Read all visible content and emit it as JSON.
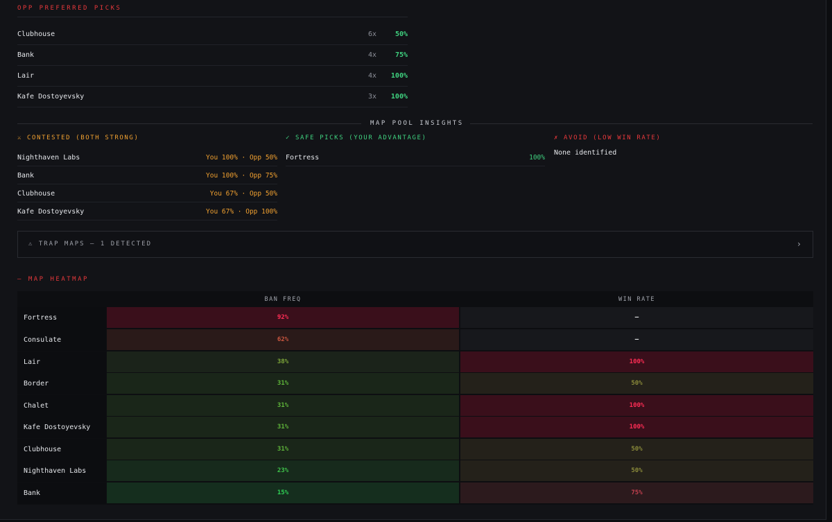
{
  "opp_picks": {
    "title": "OPP PREFERRED PICKS",
    "rows": [
      {
        "name": "Clubhouse",
        "count": "6x",
        "pct": "50%"
      },
      {
        "name": "Bank",
        "count": "4x",
        "pct": "75%"
      },
      {
        "name": "Lair",
        "count": "4x",
        "pct": "100%"
      },
      {
        "name": "Kafe Dostoyevsky",
        "count": "3x",
        "pct": "100%"
      }
    ]
  },
  "insights": {
    "title": "MAP POOL INSIGHTS",
    "contested": {
      "title": "⚔ CONTESTED (BOTH STRONG)",
      "rows": [
        {
          "name": "Nighthaven Labs",
          "value": "You 100% · Opp 50%"
        },
        {
          "name": "Bank",
          "value": "You 100% · Opp 75%"
        },
        {
          "name": "Clubhouse",
          "value": "You 67% · Opp 50%"
        },
        {
          "name": "Kafe Dostoyevsky",
          "value": "You 67% · Opp 100%"
        }
      ]
    },
    "safe": {
      "title": "✓ SAFE PICKS (YOUR ADVANTAGE)",
      "rows": [
        {
          "name": "Fortress",
          "value": "100%"
        }
      ]
    },
    "avoid": {
      "title": "✗ AVOID (LOW WIN RATE)",
      "empty_text": "None identified"
    }
  },
  "trap": {
    "label": "⚠ TRAP MAPS — 1 DETECTED",
    "chevron": "›"
  },
  "heatmap": {
    "title": "— MAP HEATMAP",
    "col_ban": "BAN FREQ",
    "col_win": "WIN RATE",
    "colors": {
      "ban_high": "#3a0f1b",
      "ban_mid": "#2b1a17",
      "green_dark": "#1a2419",
      "green_mid": "#1b2a1b",
      "green_bright": "#163020",
      "neutral": "#17181c",
      "win_high": "#3a0f1b",
      "win_mid": "#26221a",
      "win_75": "#2e1a1e"
    },
    "rows": [
      {
        "map": "Fortress",
        "ban": "92%",
        "win": "–",
        "ban_bg": "#3a0f1b",
        "ban_fg": "#ff2d55",
        "win_bg": "#17181c",
        "win_fg": "#e8e8ea"
      },
      {
        "map": "Consulate",
        "ban": "62%",
        "win": "–",
        "ban_bg": "#2a1a19",
        "ban_fg": "#c8553f",
        "win_bg": "#17181c",
        "win_fg": "#e8e8ea"
      },
      {
        "map": "Lair",
        "ban": "38%",
        "win": "100%",
        "ban_bg": "#1b231a",
        "ban_fg": "#7fa83a",
        "win_bg": "#3a0f1b",
        "win_fg": "#ff2d55"
      },
      {
        "map": "Border",
        "ban": "31%",
        "win": "50%",
        "ban_bg": "#1a2619",
        "ban_fg": "#5fb63a",
        "win_bg": "#24211a",
        "win_fg": "#8a8a3a"
      },
      {
        "map": "Chalet",
        "ban": "31%",
        "win": "100%",
        "ban_bg": "#1a2619",
        "ban_fg": "#5fb63a",
        "win_bg": "#3a0f1b",
        "win_fg": "#ff2d55"
      },
      {
        "map": "Kafe Dostoyevsky",
        "ban": "31%",
        "win": "100%",
        "ban_bg": "#1a2619",
        "ban_fg": "#5fb63a",
        "win_bg": "#3a0f1b",
        "win_fg": "#ff2d55"
      },
      {
        "map": "Clubhouse",
        "ban": "31%",
        "win": "50%",
        "ban_bg": "#1a2619",
        "ban_fg": "#5fb63a",
        "win_bg": "#24211a",
        "win_fg": "#8a8a3a"
      },
      {
        "map": "Nighthaven Labs",
        "ban": "23%",
        "win": "50%",
        "ban_bg": "#172a1c",
        "ban_fg": "#3fc24a",
        "win_bg": "#24211a",
        "win_fg": "#8a8a3a"
      },
      {
        "map": "Bank",
        "ban": "15%",
        "win": "75%",
        "ban_bg": "#152e1e",
        "ban_fg": "#2fd155",
        "win_bg": "#2c1a1d",
        "win_fg": "#c2404f"
      }
    ]
  }
}
